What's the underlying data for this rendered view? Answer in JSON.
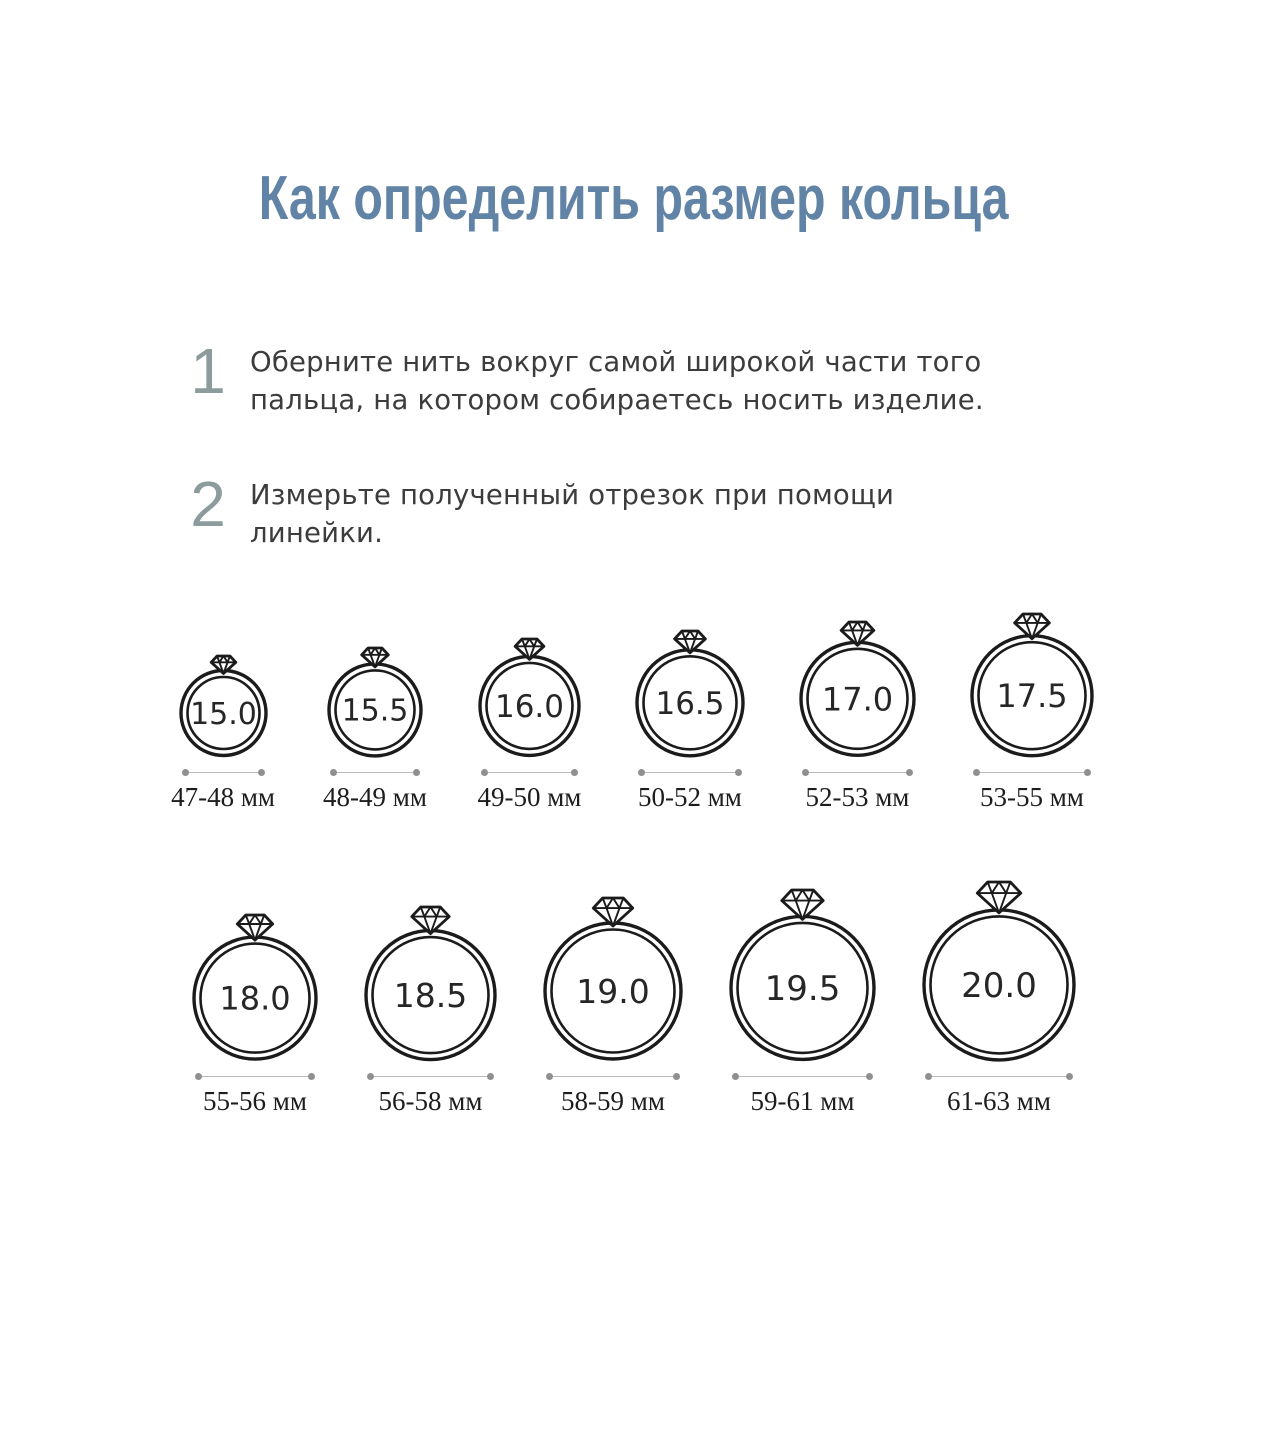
{
  "title": "Как определить размер кольца",
  "steps": [
    {
      "number": "1",
      "text": "Оберните нить вокруг самой широкой части того пальца, на котором собираетесь носить изделие."
    },
    {
      "number": "2",
      "text": "Измерьте полученный отрезок при помощи линейки."
    }
  ],
  "size_chart": {
    "unit": "мм",
    "rows": [
      {
        "rings": [
          {
            "size": "15.0",
            "range": "47-48 мм"
          },
          {
            "size": "15.5",
            "range": "48-49 мм"
          },
          {
            "size": "16.0",
            "range": "49-50 мм"
          },
          {
            "size": "16.5",
            "range": "50-52 мм"
          },
          {
            "size": "17.0",
            "range": "52-53 мм"
          },
          {
            "size": "17.5",
            "range": "53-55 мм"
          }
        ]
      },
      {
        "rings": [
          {
            "size": "18.0",
            "range": "55-56 мм"
          },
          {
            "size": "18.5",
            "range": "56-58 мм"
          },
          {
            "size": "19.0",
            "range": "58-59 мм"
          },
          {
            "size": "19.5",
            "range": "59-61 мм"
          },
          {
            "size": "20.0",
            "range": "61-63 мм"
          }
        ]
      }
    ]
  },
  "colors": {
    "title": "#6083a6",
    "step_number": "#8c9c9c",
    "text": "#3c3c3c",
    "ring": "#1b1b1b",
    "number": "#262626",
    "measure_line": "#b9b9b9",
    "measure_dot": "#8f8f8f",
    "label": "#1d1d1d",
    "bg": "#ffffff"
  }
}
